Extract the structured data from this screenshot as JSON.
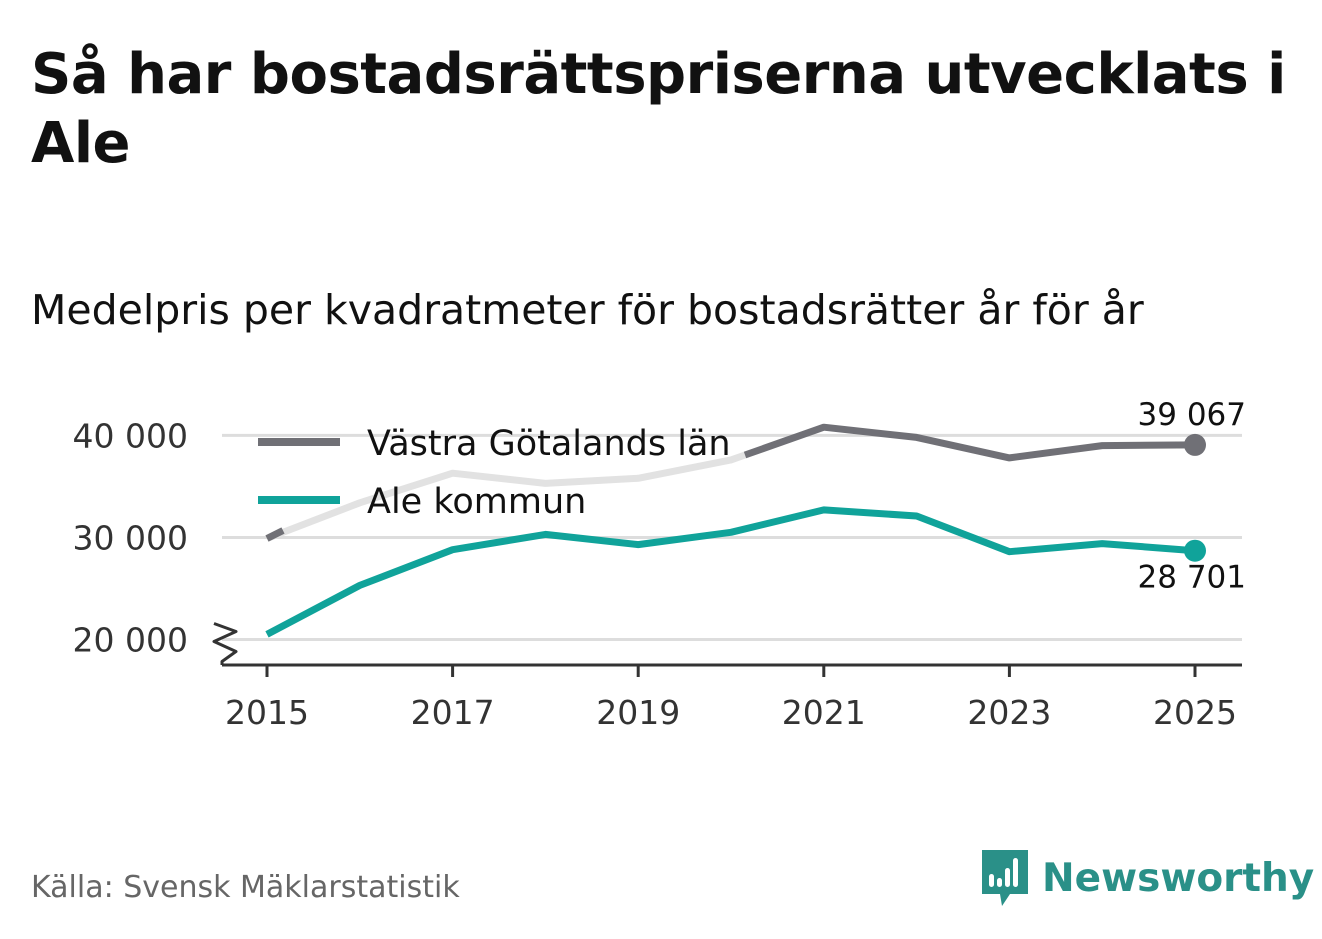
{
  "title": "Så har bostadsrättspriserna utvecklats i Ale",
  "subtitle": "Medelpris per kvadratmeter för bostadsrätter år för år",
  "source": "Källa: Svensk Mäklarstatistik",
  "brand": {
    "name": "Newsworthy",
    "icon": "newsworthy-logo-icon",
    "color": "#2a9088"
  },
  "colors": {
    "regional": "#707076",
    "regional_faded": "#e2e2e2",
    "local": "#10a39a",
    "grid": "#dddddd",
    "axis": "#333333"
  },
  "chart_data": {
    "type": "line",
    "x": [
      2015,
      2016,
      2017,
      2018,
      2019,
      2020,
      2021,
      2022,
      2023,
      2024,
      2025
    ],
    "xticks": [
      2015,
      2017,
      2019,
      2021,
      2023,
      2025
    ],
    "xtick_labels": [
      "2015",
      "2017",
      "2019",
      "2021",
      "2023",
      "2025"
    ],
    "yticks": [
      20000,
      30000,
      40000
    ],
    "ytick_labels": [
      "20 000",
      "30 000",
      "40 000"
    ],
    "ylim": [
      17500,
      42000
    ],
    "axis_break": true,
    "grid": true,
    "legend": "top-left",
    "series": [
      {
        "name": "Västra Götalands län",
        "key": "regional",
        "values": [
          29900,
          33400,
          36300,
          35300,
          35800,
          37600,
          40800,
          39800,
          37800,
          39000,
          39067
        ],
        "end_label": "39 067"
      },
      {
        "name": "Ale kommun",
        "key": "local",
        "values": [
          20500,
          25300,
          28800,
          30300,
          29300,
          30500,
          32700,
          32100,
          28600,
          29400,
          28701
        ],
        "end_label": "28 701"
      }
    ]
  }
}
